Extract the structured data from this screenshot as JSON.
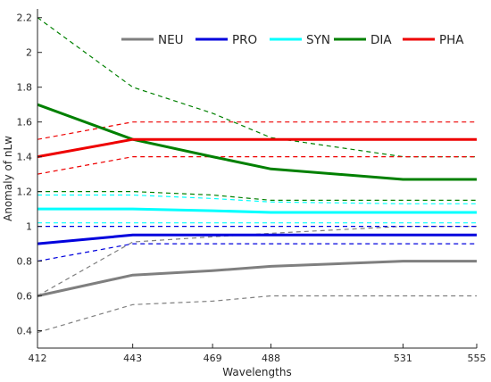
{
  "chart_data": {
    "type": "line",
    "xlabel": "Wavelengths",
    "ylabel": "Anomaly of nLw",
    "x": [
      412,
      443,
      469,
      488,
      531,
      555
    ],
    "x_tick_labels": [
      "412",
      "443",
      "469",
      "488",
      "531",
      "555"
    ],
    "xlim": [
      412,
      555
    ],
    "ylim": [
      0.3,
      2.25
    ],
    "y_ticks": [
      0.4,
      0.6,
      0.8,
      1.0,
      1.2,
      1.4,
      1.6,
      1.8,
      2.0,
      2.2
    ],
    "y_tick_labels": [
      "0.4",
      "0.6",
      "0.8",
      "1",
      "1.2",
      "1.4",
      "1.6",
      "1.8",
      "2",
      "2.2"
    ],
    "grid": false,
    "legend_position": "top",
    "series": [
      {
        "name": "NEU",
        "color": "#7f7f7f",
        "values": [
          0.6,
          0.72,
          0.745,
          0.77,
          0.8,
          0.8
        ],
        "lower": [
          0.39,
          0.55,
          0.57,
          0.6,
          0.6,
          0.6
        ],
        "upper": [
          0.6,
          0.91,
          0.94,
          0.96,
          1.0,
          1.0
        ]
      },
      {
        "name": "PRO",
        "color": "#0000dd",
        "values": [
          0.9,
          0.95,
          0.95,
          0.95,
          0.95,
          0.95
        ],
        "lower": [
          0.8,
          0.9,
          0.9,
          0.9,
          0.9,
          0.9
        ],
        "upper": [
          1.0,
          1.0,
          1.0,
          1.0,
          1.0,
          1.0
        ]
      },
      {
        "name": "SYN",
        "color": "#00ffff",
        "values": [
          1.1,
          1.1,
          1.09,
          1.08,
          1.08,
          1.08
        ],
        "lower": [
          1.02,
          1.02,
          1.02,
          1.02,
          1.02,
          1.02
        ],
        "upper": [
          1.18,
          1.18,
          1.16,
          1.14,
          1.13,
          1.13
        ]
      },
      {
        "name": "DIA",
        "color": "#008000",
        "values": [
          1.7,
          1.5,
          1.4,
          1.33,
          1.27,
          1.27
        ],
        "lower": [
          1.2,
          1.2,
          1.18,
          1.15,
          1.15,
          1.15
        ],
        "upper": [
          2.2,
          1.8,
          1.65,
          1.51,
          1.4,
          1.4
        ]
      },
      {
        "name": "PHA",
        "color": "#ee0000",
        "values": [
          1.4,
          1.5,
          1.5,
          1.5,
          1.5,
          1.5
        ],
        "lower": [
          1.3,
          1.4,
          1.4,
          1.4,
          1.4,
          1.4
        ],
        "upper": [
          1.5,
          1.6,
          1.6,
          1.6,
          1.6,
          1.6
        ]
      }
    ]
  }
}
